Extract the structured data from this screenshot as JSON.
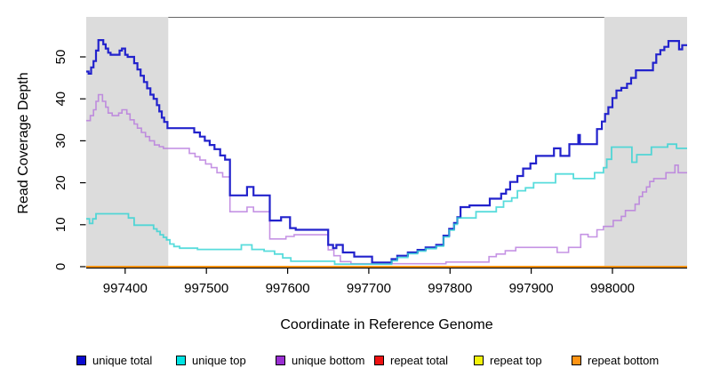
{
  "chart_data": {
    "type": "line",
    "subtype": "step-after",
    "title": "",
    "xlabel": "Coordinate in Reference Genome",
    "ylabel": "Read Coverage Depth",
    "xlim": [
      997352,
      998092
    ],
    "ylim": [
      0,
      59.5
    ],
    "x_ticks": [
      997400,
      997500,
      997600,
      997700,
      997800,
      997900,
      998000
    ],
    "y_ticks": [
      0,
      10,
      20,
      30,
      40,
      50
    ],
    "grid": false,
    "legend_position": "bottom",
    "background_color": "#ffffff",
    "band_color": "#dcdcdc",
    "box_color": "#666666",
    "axis_color": "#000000",
    "shaded_regions": [
      {
        "x0": 997352,
        "x1": 997453
      },
      {
        "x0": 997990,
        "x1": 998092
      }
    ],
    "series": [
      {
        "name": "repeat total",
        "color": "#e01010",
        "legend_color": "#ee1111",
        "width": 1.5,
        "opacity": 1,
        "points": [
          [
            997352,
            0
          ]
        ]
      },
      {
        "name": "repeat top",
        "color": "#f2f20a",
        "legend_color": "#f2f20a",
        "width": 1.5,
        "opacity": 1,
        "points": [
          [
            997352,
            0
          ]
        ]
      },
      {
        "name": "repeat bottom",
        "color": "#ff9414",
        "legend_color": "#ff9414",
        "width": 2,
        "opacity": 1,
        "points": [
          [
            997352,
            0
          ]
        ]
      },
      {
        "name": "unique bottom",
        "color": "#b678dd",
        "legend_color": "#9a2fd2",
        "width": 1.6,
        "opacity": 0.8,
        "points": [
          [
            997352,
            34.8
          ],
          [
            997357,
            36
          ],
          [
            997361,
            37.4
          ],
          [
            997364,
            39.4
          ],
          [
            997367,
            41
          ],
          [
            997372,
            39.4
          ],
          [
            997376,
            38
          ],
          [
            997379,
            36.6
          ],
          [
            997384,
            36
          ],
          [
            997392,
            36.6
          ],
          [
            997396,
            37.4
          ],
          [
            997402,
            36.4
          ],
          [
            997406,
            35
          ],
          [
            997411,
            34
          ],
          [
            997415,
            33
          ],
          [
            997420,
            32
          ],
          [
            997425,
            31
          ],
          [
            997430,
            30
          ],
          [
            997436,
            29
          ],
          [
            997442,
            28.6
          ],
          [
            997447,
            28.2
          ],
          [
            997479,
            27
          ],
          [
            997486,
            26.2
          ],
          [
            997492,
            25.4
          ],
          [
            997499,
            24.5
          ],
          [
            997506,
            23.6
          ],
          [
            997513,
            22.4
          ],
          [
            997520,
            21.4
          ],
          [
            997529,
            13.1
          ],
          [
            997550,
            14.2
          ],
          [
            997558,
            13.1
          ],
          [
            997578,
            6.6
          ],
          [
            997598,
            7.2
          ],
          [
            997608,
            7.6
          ],
          [
            997650,
            4
          ],
          [
            997657,
            2.6
          ],
          [
            997665,
            1.2
          ],
          [
            997678,
            0.7
          ],
          [
            997795,
            1.1
          ],
          [
            997848,
            2.4
          ],
          [
            997857,
            3
          ],
          [
            997868,
            3.8
          ],
          [
            997881,
            4.6
          ],
          [
            997932,
            3.4
          ],
          [
            997946,
            4.6
          ],
          [
            997961,
            7.7
          ],
          [
            997970,
            7.1
          ],
          [
            997981,
            8.8
          ],
          [
            997989,
            9.6
          ],
          [
            998001,
            11
          ],
          [
            998011,
            12
          ],
          [
            998016,
            13.4
          ],
          [
            998028,
            14.9
          ],
          [
            998033,
            16.7
          ],
          [
            998037,
            17.8
          ],
          [
            998042,
            19
          ],
          [
            998046,
            20.3
          ],
          [
            998051,
            21
          ],
          [
            998066,
            22.4
          ],
          [
            998077,
            24.2
          ],
          [
            998081,
            22.4
          ]
        ]
      },
      {
        "name": "unique total",
        "color": "#2222cc",
        "legend_color": "#0b0bd0",
        "width": 2.2,
        "opacity": 1,
        "points": [
          [
            997352,
            46.5
          ],
          [
            997355,
            46
          ],
          [
            997358,
            47.5
          ],
          [
            997361,
            49
          ],
          [
            997364,
            51.5
          ],
          [
            997367,
            54
          ],
          [
            997373,
            53
          ],
          [
            997376,
            52
          ],
          [
            997379,
            51
          ],
          [
            997382,
            50.5
          ],
          [
            997393,
            51.5
          ],
          [
            997396,
            52
          ],
          [
            997400,
            50.5
          ],
          [
            997403,
            50
          ],
          [
            997411,
            48.5
          ],
          [
            997415,
            47
          ],
          [
            997419,
            45.5
          ],
          [
            997423,
            44
          ],
          [
            997427,
            42.5
          ],
          [
            997431,
            41
          ],
          [
            997435,
            40
          ],
          [
            997439,
            38.5
          ],
          [
            997442,
            37
          ],
          [
            997445,
            35.5
          ],
          [
            997448,
            34.5
          ],
          [
            997452,
            33
          ],
          [
            997485,
            32
          ],
          [
            997492,
            31
          ],
          [
            997498,
            30
          ],
          [
            997504,
            29
          ],
          [
            997510,
            28
          ],
          [
            997517,
            26.5
          ],
          [
            997523,
            25.5
          ],
          [
            997529,
            17
          ],
          [
            997550,
            19
          ],
          [
            997558,
            17
          ],
          [
            997578,
            11
          ],
          [
            997592,
            11.8
          ],
          [
            997603,
            9.2
          ],
          [
            997610,
            8.8
          ],
          [
            997650,
            5.2
          ],
          [
            997656,
            4.4
          ],
          [
            997660,
            5.2
          ],
          [
            997668,
            3.4
          ],
          [
            997682,
            2.4
          ],
          [
            997704,
            1
          ],
          [
            997728,
            1.8
          ],
          [
            997735,
            2.6
          ],
          [
            997748,
            3.4
          ],
          [
            997760,
            4
          ],
          [
            997770,
            4.6
          ],
          [
            997783,
            5.2
          ],
          [
            997792,
            7.4
          ],
          [
            997799,
            9
          ],
          [
            997805,
            10.4
          ],
          [
            997809,
            11.8
          ],
          [
            997813,
            14.2
          ],
          [
            997824,
            14.6
          ],
          [
            997849,
            16.2
          ],
          [
            997863,
            17.4
          ],
          [
            997869,
            18.4
          ],
          [
            997874,
            20.2
          ],
          [
            997883,
            21.6
          ],
          [
            997890,
            23.4
          ],
          [
            997899,
            24.6
          ],
          [
            997906,
            26.4
          ],
          [
            997928,
            28.2
          ],
          [
            997936,
            26.4
          ],
          [
            997947,
            29.2
          ],
          [
            997958,
            31.4
          ],
          [
            997960,
            29.2
          ],
          [
            997981,
            32.8
          ],
          [
            997987,
            34.6
          ],
          [
            997991,
            36.4
          ],
          [
            997995,
            38
          ],
          [
            998000,
            40.2
          ],
          [
            998005,
            42
          ],
          [
            998011,
            42.6
          ],
          [
            998018,
            43.6
          ],
          [
            998023,
            45
          ],
          [
            998029,
            46.8
          ],
          [
            998050,
            48.6
          ],
          [
            998054,
            50.6
          ],
          [
            998059,
            51.6
          ],
          [
            998064,
            52.4
          ],
          [
            998069,
            53.8
          ],
          [
            998082,
            51.8
          ],
          [
            998086,
            52.8
          ]
        ]
      },
      {
        "name": "unique top",
        "color": "#2ed3d3",
        "legend_color": "#00e3e3",
        "width": 1.8,
        "opacity": 0.8,
        "points": [
          [
            997352,
            11.4
          ],
          [
            997356,
            10.3
          ],
          [
            997360,
            11.4
          ],
          [
            997364,
            12.6
          ],
          [
            997404,
            11.6
          ],
          [
            997411,
            9.9
          ],
          [
            997435,
            9
          ],
          [
            997439,
            8.4
          ],
          [
            997443,
            7.6
          ],
          [
            997447,
            7
          ],
          [
            997451,
            6.4
          ],
          [
            997455,
            5.4
          ],
          [
            997460,
            4.8
          ],
          [
            997467,
            4.4
          ],
          [
            997489,
            4.1
          ],
          [
            997543,
            5.2
          ],
          [
            997556,
            4.1
          ],
          [
            997571,
            3.7
          ],
          [
            997584,
            3
          ],
          [
            997594,
            2.1
          ],
          [
            997604,
            1.3
          ],
          [
            997658,
            0.6
          ],
          [
            997728,
            1.4
          ],
          [
            997735,
            2.2
          ],
          [
            997748,
            3.1
          ],
          [
            997760,
            3.7
          ],
          [
            997770,
            4.3
          ],
          [
            997783,
            4.9
          ],
          [
            997792,
            7.1
          ],
          [
            997799,
            8.7
          ],
          [
            997805,
            10.1
          ],
          [
            997809,
            11.6
          ],
          [
            997832,
            13.1
          ],
          [
            997857,
            14.2
          ],
          [
            997866,
            15.6
          ],
          [
            997876,
            16.4
          ],
          [
            997883,
            18.1
          ],
          [
            997893,
            18.8
          ],
          [
            997903,
            20
          ],
          [
            997930,
            22.1
          ],
          [
            997952,
            21
          ],
          [
            997978,
            22.4
          ],
          [
            997989,
            23.6
          ],
          [
            997993,
            25.6
          ],
          [
            997999,
            28.5
          ],
          [
            998024,
            24.9
          ],
          [
            998030,
            26.7
          ],
          [
            998048,
            28.5
          ],
          [
            998068,
            29.2
          ],
          [
            998079,
            28.2
          ]
        ]
      }
    ],
    "legend": [
      "unique total",
      "unique top",
      "unique bottom",
      "repeat total",
      "repeat top",
      "repeat bottom"
    ]
  }
}
